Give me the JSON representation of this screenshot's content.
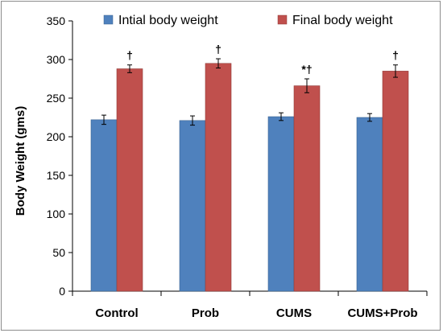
{
  "chart_data": {
    "type": "bar",
    "categories": [
      "Control",
      "Prob",
      "CUMS",
      "CUMS+Prob"
    ],
    "series": [
      {
        "name": "Intial body weight",
        "color": "#4f81bd",
        "values": [
          222,
          221,
          226,
          225
        ],
        "errors": [
          6,
          6,
          5,
          5
        ],
        "annotations": [
          "",
          "",
          "",
          ""
        ]
      },
      {
        "name": "Final body weight",
        "color": "#c0504d",
        "values": [
          288,
          295,
          266,
          285
        ],
        "errors": [
          5,
          6,
          9,
          8
        ],
        "annotations": [
          "†",
          "†",
          "*†",
          "†"
        ]
      }
    ],
    "ylabel": "Body Weight (gms)",
    "ylim": [
      0,
      350
    ],
    "yticks": [
      0,
      50,
      100,
      150,
      200,
      250,
      300,
      350
    ],
    "legend_position": "top",
    "grid": false
  }
}
